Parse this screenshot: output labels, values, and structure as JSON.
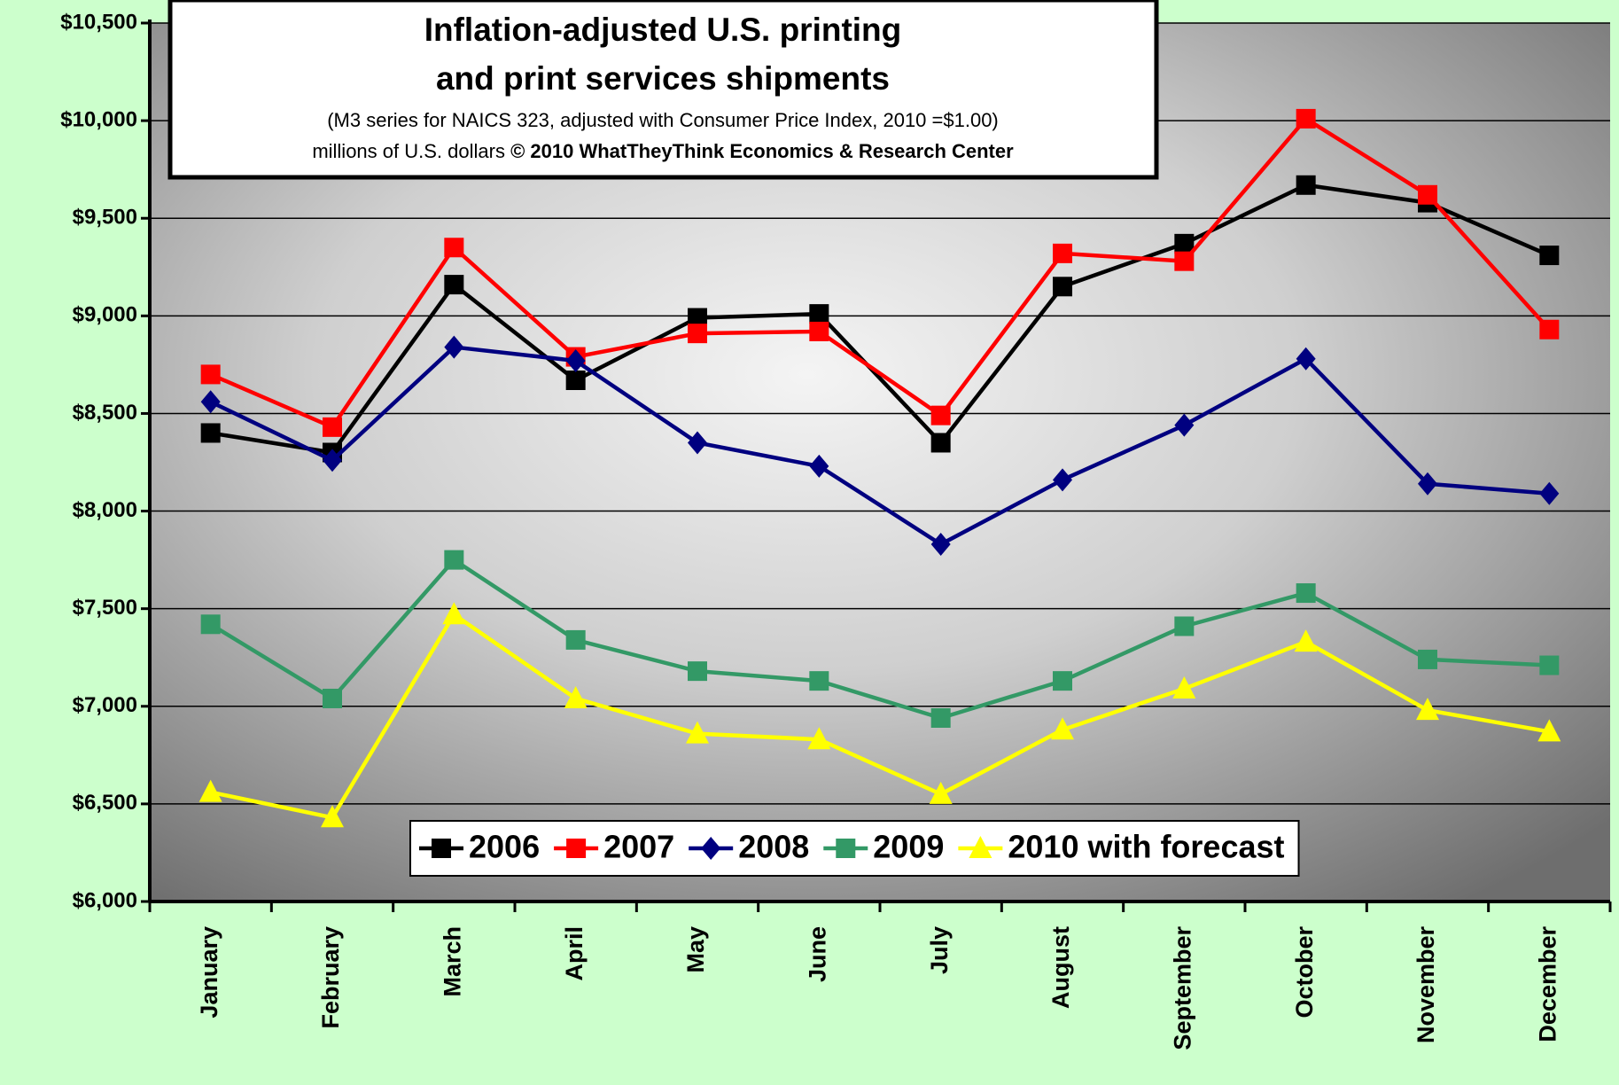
{
  "chart_data": {
    "type": "line",
    "title": [
      "Inflation-adjusted U.S. printing",
      "and print services shipments"
    ],
    "subtitle": "(M3 series for NAICS 323, adjusted with Consumer Price Index, 2010 =$1.00)",
    "source_prefix": "millions of U.S. dollars",
    "source": "© 2010 WhatTheyThink Economics & Research Center",
    "categories": [
      "January",
      "February",
      "March",
      "April",
      "May",
      "June",
      "July",
      "August",
      "September",
      "October",
      "November",
      "December"
    ],
    "series": [
      {
        "name": "2006",
        "color": "#000000",
        "marker": "square",
        "values": [
          8400,
          8300,
          9160,
          8670,
          8990,
          9010,
          8350,
          9150,
          9370,
          9670,
          9580,
          9310
        ]
      },
      {
        "name": "2007",
        "color": "#ff0000",
        "marker": "square",
        "values": [
          8700,
          8430,
          9350,
          8790,
          8910,
          8920,
          8490,
          9320,
          9280,
          10010,
          9620,
          8930
        ]
      },
      {
        "name": "2008",
        "color": "#000080",
        "marker": "diamond",
        "values": [
          8560,
          8260,
          8840,
          8770,
          8350,
          8230,
          7830,
          8160,
          8440,
          8780,
          8140,
          8090
        ]
      },
      {
        "name": "2009",
        "color": "#339966",
        "marker": "square",
        "values": [
          7420,
          7040,
          7750,
          7340,
          7180,
          7130,
          6940,
          7130,
          7410,
          7580,
          7240,
          7210
        ]
      },
      {
        "name": "2010 with forecast",
        "color": "#ffff00",
        "marker": "triangle",
        "values": [
          6560,
          6430,
          7470,
          7040,
          6860,
          6830,
          6550,
          6880,
          7090,
          7330,
          6980,
          6870
        ]
      }
    ],
    "ylim": [
      6000,
      10500
    ],
    "yticks": [
      {
        "value": 6000,
        "label": "$6,000"
      },
      {
        "value": 6500,
        "label": "$6,500"
      },
      {
        "value": 7000,
        "label": "$7,000"
      },
      {
        "value": 7500,
        "label": "$7,500"
      },
      {
        "value": 8000,
        "label": "$8,000"
      },
      {
        "value": 8500,
        "label": "$8,500"
      },
      {
        "value": 9000,
        "label": "$9,000"
      },
      {
        "value": 9500,
        "label": "$9,500"
      },
      {
        "value": 10000,
        "label": "$10,000"
      },
      {
        "value": 10500,
        "label": "$10,500"
      }
    ],
    "grid": true,
    "legend": "bottom"
  }
}
